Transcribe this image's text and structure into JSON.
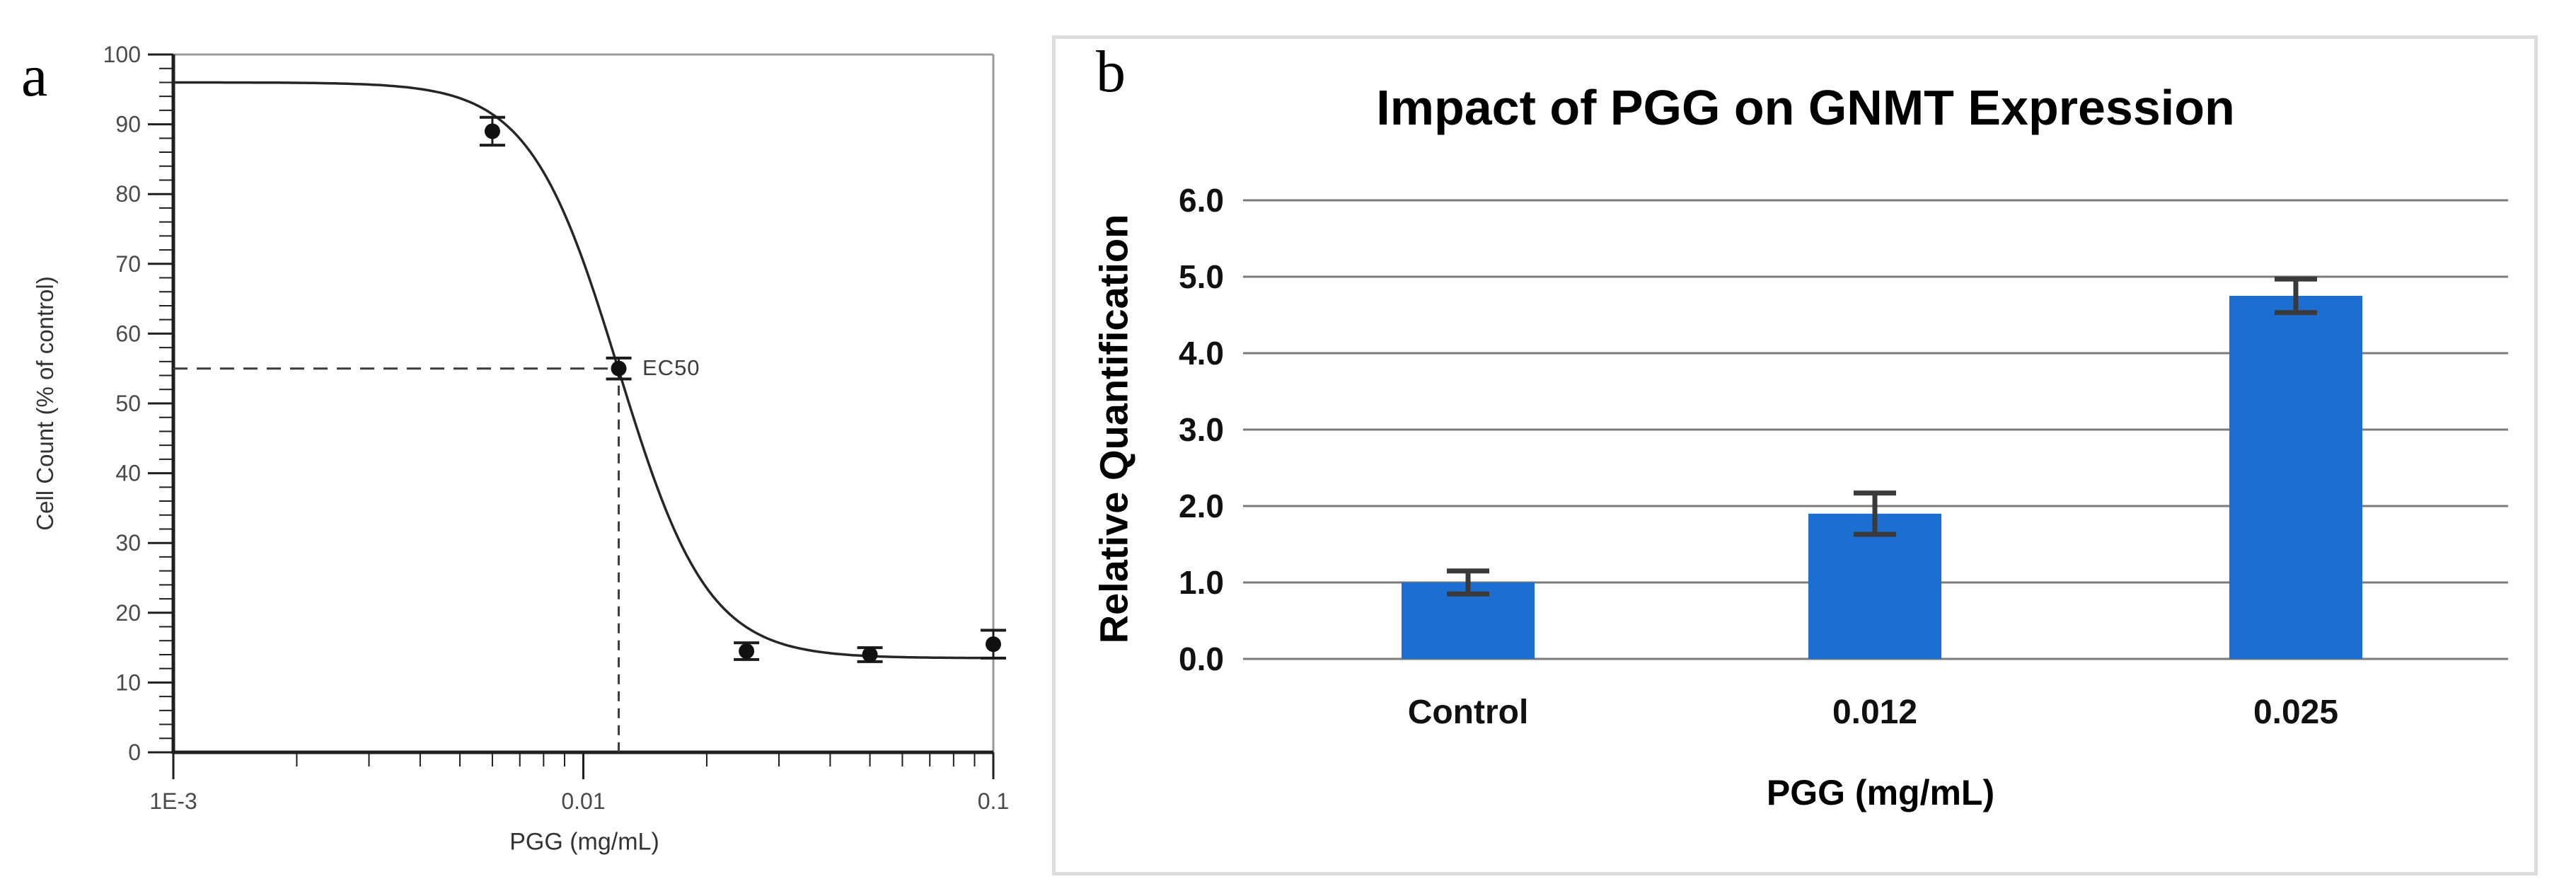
{
  "panels": {
    "a": {
      "label": "a"
    },
    "b": {
      "label": "b"
    }
  },
  "colors": {
    "bar_blue": "#1c6fd1",
    "grid_gray": "#7a7a7a",
    "frame_gray": "#dcdcdc",
    "axis_ink": "#1f1f1f",
    "dashed_ink": "#3c3c3c",
    "point_ink": "#111111",
    "error_ink_b": "#3a3a3a"
  },
  "chart_data": [
    {
      "type": "scatter",
      "panel": "a",
      "title": "",
      "xlabel": "PGG (mg/mL)",
      "ylabel": "Cell Count (% of control)",
      "x_scale": "log",
      "xlim": [
        0.001,
        0.1
      ],
      "ylim": [
        0,
        100
      ],
      "x_ticks": [
        {
          "value": 0.001,
          "label": "1E-3"
        },
        {
          "value": 0.01,
          "label": "0.01"
        },
        {
          "value": 0.1,
          "label": "0.1"
        }
      ],
      "y_tick_step": 10,
      "y_minor_step": 2,
      "grid": false,
      "points": [
        {
          "x": 0.006,
          "y": 89,
          "err": 2
        },
        {
          "x": 0.0122,
          "y": 55,
          "err": 1.5
        },
        {
          "x": 0.025,
          "y": 14.5,
          "err": 1.2
        },
        {
          "x": 0.05,
          "y": 14,
          "err": 1
        },
        {
          "x": 0.1,
          "y": 15.5,
          "err": 2
        }
      ],
      "curve": {
        "model": "4PL",
        "top": 96,
        "bottom": 13.5,
        "ec50": 0.0122,
        "hill": 4
      },
      "annotation": {
        "label": "EC50",
        "x": 0.0122,
        "y": 55
      }
    },
    {
      "type": "bar",
      "panel": "b",
      "title": "Impact of PGG on GNMT Expression",
      "xlabel": "PGG (mg/mL)",
      "ylabel": "Relative Quantification",
      "categories": [
        "Control",
        "0.012",
        "0.025"
      ],
      "values": [
        1.0,
        1.9,
        4.75
      ],
      "errors": [
        0.15,
        0.27,
        0.22
      ],
      "ylim": [
        0,
        6
      ],
      "y_ticks": [
        "0.0",
        "1.0",
        "2.0",
        "3.0",
        "4.0",
        "5.0",
        "6.0"
      ],
      "bar_color": "#1c6fd1",
      "grid": true,
      "legend_position": "none"
    }
  ]
}
